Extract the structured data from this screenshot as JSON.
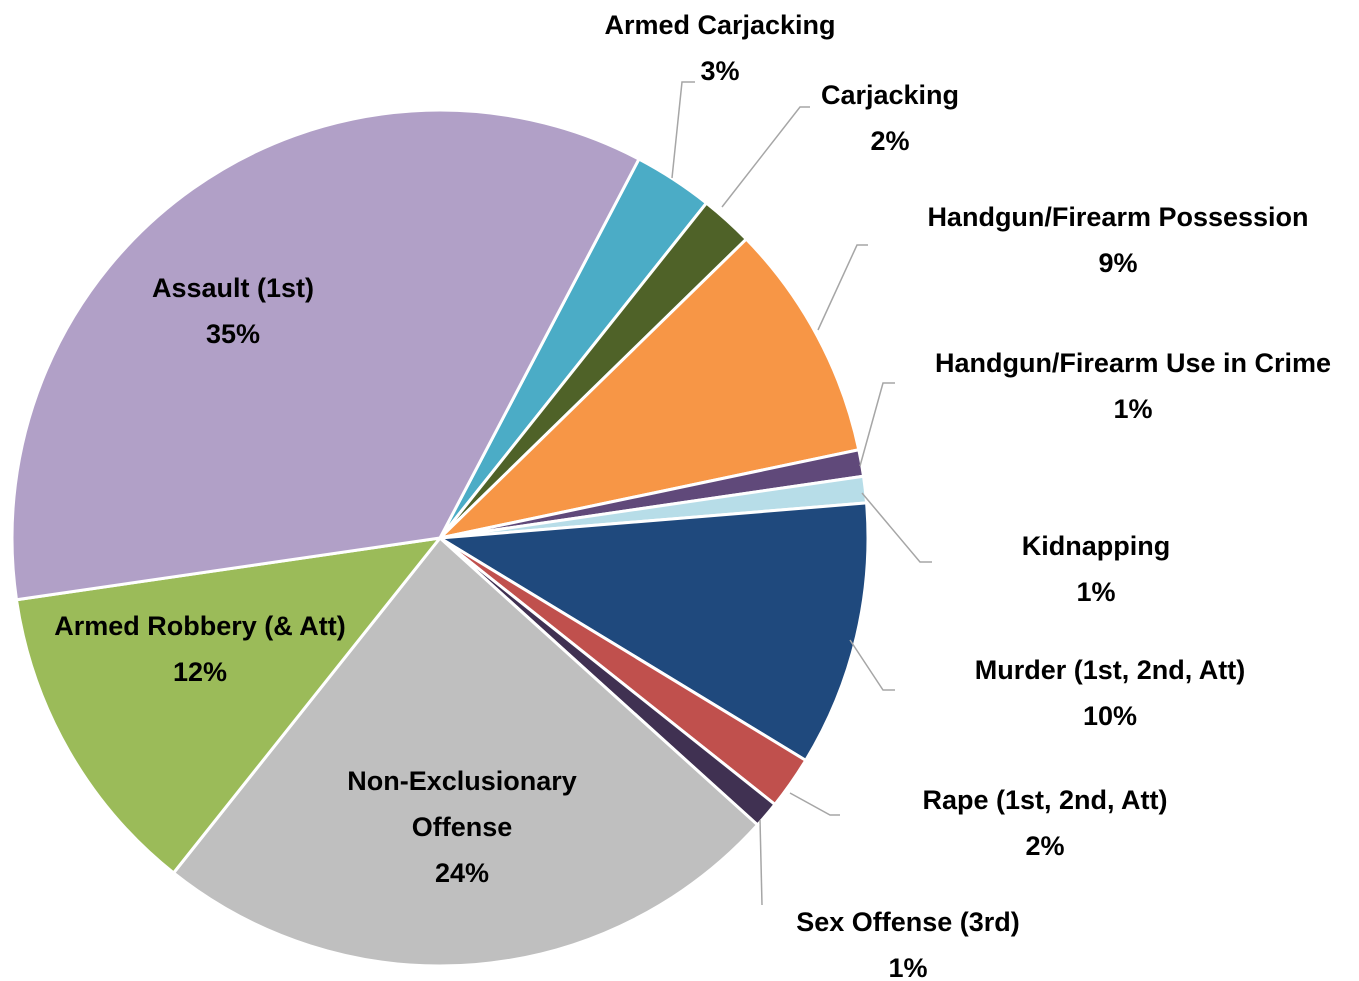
{
  "chart_data": {
    "type": "pie",
    "categories": [
      "Armed Carjacking",
      "Carjacking",
      "Handgun/Firearm Possession",
      "Handgun/Firearm Use in Crime",
      "Kidnapping",
      "Murder (1st, 2nd, Att)",
      "Rape (1st, 2nd, Att)",
      "Sex Offense (3rd)",
      "Non-Exclusionary Offense",
      "Armed Robbery (& Att)",
      "Assault (1st)"
    ],
    "values": [
      3,
      2,
      9,
      1,
      1,
      10,
      2,
      1,
      24,
      12,
      35
    ],
    "value_labels": [
      "3%",
      "2%",
      "9%",
      "1%",
      "1%",
      "10%",
      "2%",
      "1%",
      "24%",
      "12%",
      "35%"
    ],
    "colors": [
      "#4bacc6",
      "#4f6228",
      "#f79646",
      "#60497a",
      "#b7dde8",
      "#1f497d",
      "#c0504d",
      "#403152",
      "#bfbfbf",
      "#9bbb59",
      "#b1a0c7"
    ]
  }
}
